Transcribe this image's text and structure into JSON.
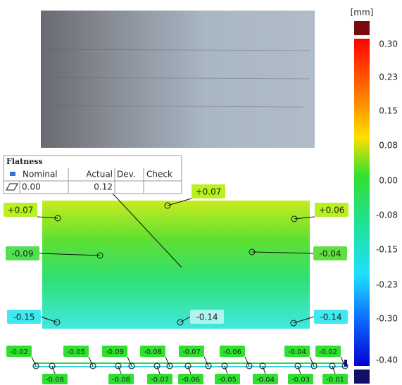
{
  "colorbar": {
    "unit": "[mm]",
    "labels": [
      "0.30",
      "0.23",
      "0.15",
      "0.08",
      "0.00",
      "-0.08",
      "-0.15",
      "-0.23",
      "-0.30",
      "-0.40"
    ]
  },
  "table": {
    "title": "Flatness",
    "headers": [
      "Nominal",
      "Actual",
      "Dev.",
      "Check"
    ],
    "row": [
      "0.00",
      "0.12"
    ]
  },
  "markers": [
    "+0.07",
    "+0.07",
    "+0.06",
    "-0.09",
    "-0.04",
    "-0.15",
    "-0.14",
    "-0.14"
  ],
  "strip": {
    "top": [
      "-0.02",
      "-0.05",
      "-0.09",
      "-0.08",
      "-0.07",
      "-0.06",
      "-0.04",
      "-0.02"
    ],
    "bottom": [
      "-0.08",
      "-0.08",
      "-0.07",
      "-0.06",
      "-0.05",
      "-0.04",
      "-0.03",
      "-0.01"
    ]
  }
}
